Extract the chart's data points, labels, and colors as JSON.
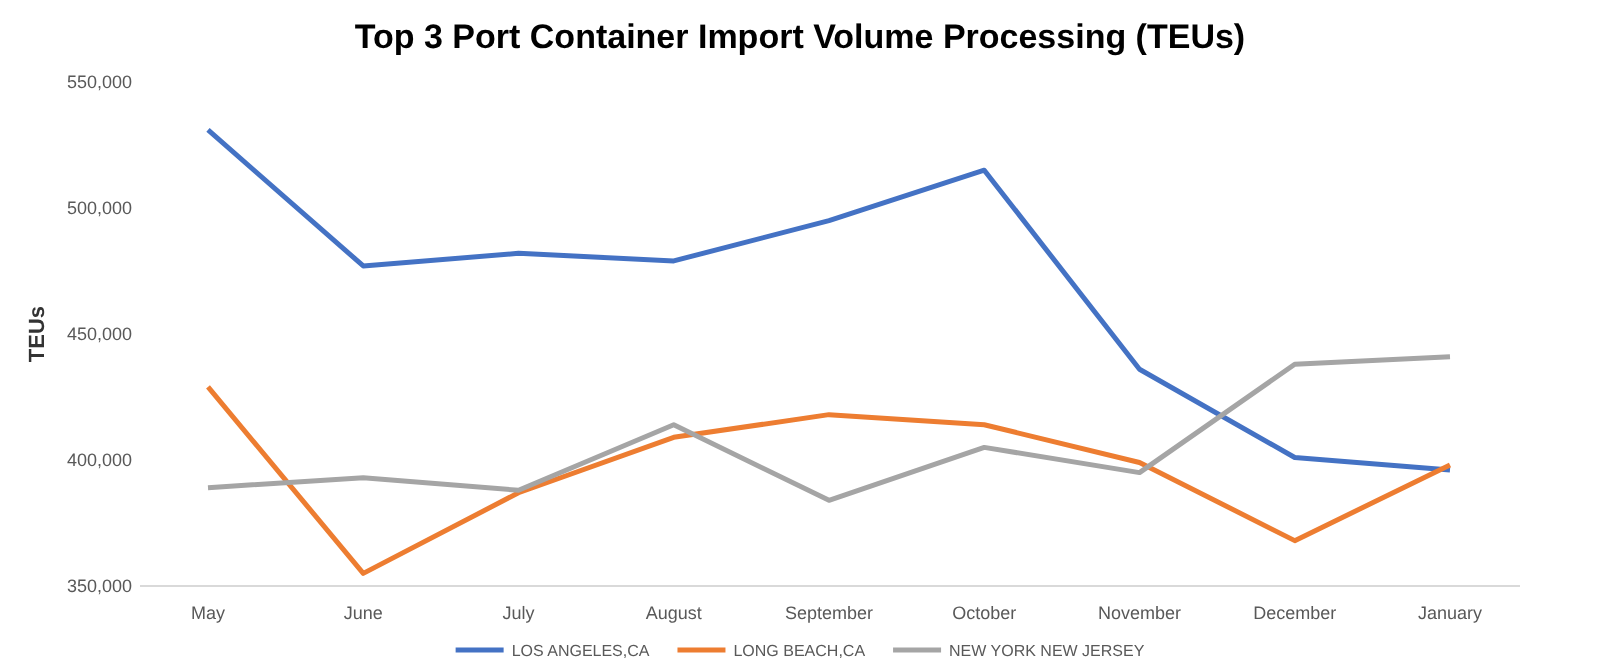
{
  "chart_data": {
    "type": "line",
    "title": "Top 3 Port Container Import Volume Processing (TEUs)",
    "ylabel": "TEUs",
    "categories": [
      "May",
      "June",
      "July",
      "August",
      "September",
      "October",
      "November",
      "December",
      "January"
    ],
    "series": [
      {
        "name": "LOS ANGELES,CA",
        "color": "#4472c4",
        "values": [
          531000,
          477000,
          482000,
          479000,
          495000,
          515000,
          436000,
          401000,
          396000
        ]
      },
      {
        "name": "LONG BEACH,CA",
        "color": "#ed7d31",
        "values": [
          429000,
          355000,
          387000,
          409000,
          418000,
          414000,
          399000,
          368000,
          398000
        ]
      },
      {
        "name": "NEW YORK NEW JERSEY",
        "color": "#a5a5a5",
        "values": [
          389000,
          393000,
          388000,
          414000,
          384000,
          405000,
          395000,
          438000,
          441000
        ]
      }
    ],
    "ylim": [
      350000,
      550000
    ],
    "yticks": [
      {
        "value": 350000,
        "label": "350,000"
      },
      {
        "value": 400000,
        "label": "400,000"
      },
      {
        "value": 450000,
        "label": "450,000"
      },
      {
        "value": 500000,
        "label": "500,000"
      },
      {
        "value": 550000,
        "label": "550,000"
      }
    ],
    "legend": "bottom",
    "marker": "none",
    "line_style": "solid",
    "grid": false
  }
}
